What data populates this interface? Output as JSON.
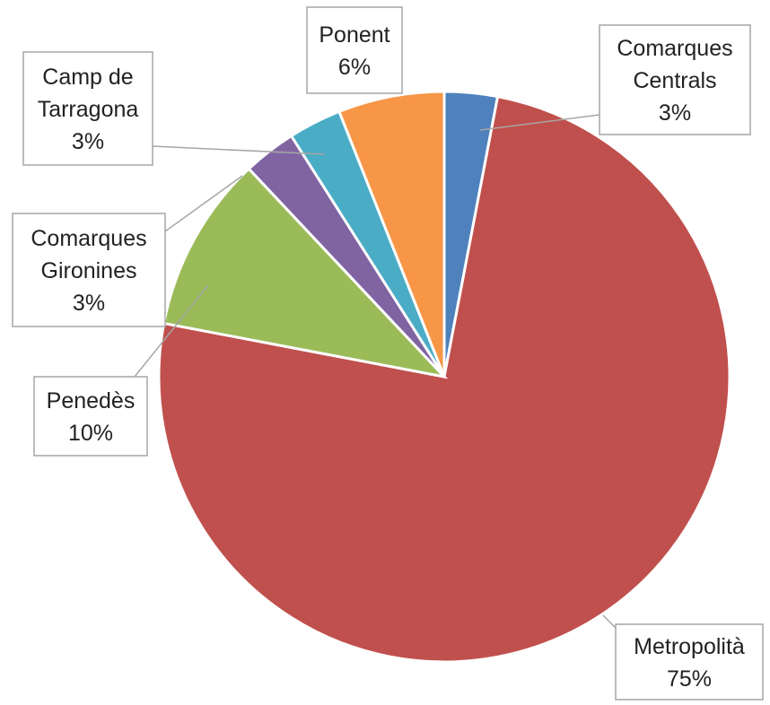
{
  "chart_data": {
    "type": "pie",
    "categories": [
      "Comarques Centrals",
      "Metropolità",
      "Penedès",
      "Comarques Gironines",
      "Camp de Tarragona",
      "Ponent"
    ],
    "values": [
      3,
      75,
      10,
      3,
      3,
      6
    ],
    "value_labels": [
      "3%",
      "75%",
      "10%",
      "3%",
      "3%",
      "6%"
    ],
    "colors": [
      "#4f81bd",
      "#c0504d",
      "#9bbb59",
      "#8064a2",
      "#4bacc6",
      "#f79646"
    ]
  }
}
